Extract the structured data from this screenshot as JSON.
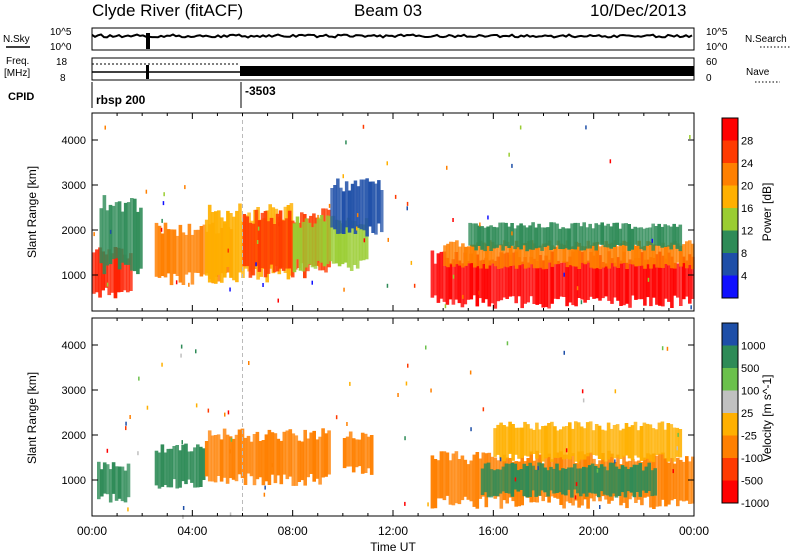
{
  "header": {
    "station": "Clyde River (fitACF)",
    "beam": "Beam 03",
    "date": "10/Dec/2013"
  },
  "summary": {
    "nsky_label": "N.Sky",
    "nsearch_label": "N.Search",
    "nsky_top": "10^5",
    "nsky_bottom": "10^0",
    "nsearch_top": "10^5",
    "nsearch_bottom": "10^0",
    "freq_label_1": "Freq.",
    "freq_label_2": "[MHz]",
    "freq_top": "18",
    "freq_bottom": "8",
    "nave_label": "Nave",
    "nave_top": "60",
    "nave_bottom": "0",
    "cpid_label": "CPID",
    "cpid_values": [
      {
        "name": "rbsp 200",
        "start_hour": 0
      },
      {
        "name": "-3503",
        "start_hour": 6
      }
    ]
  },
  "axes": {
    "ylabel": "Slant Range [km]",
    "xlabel": "Time UT",
    "y_ticks": [
      "4000",
      "3000",
      "2000",
      "1000"
    ],
    "y_tick_values": [
      4000,
      3000,
      2000,
      1000
    ],
    "ylim": [
      200,
      4600
    ],
    "x_ticks": [
      "00:00",
      "04:00",
      "08:00",
      "12:00",
      "16:00",
      "20:00",
      "00:00"
    ],
    "x_tick_hours": [
      0,
      4,
      8,
      12,
      16,
      20,
      24
    ],
    "xlim": [
      0,
      24
    ]
  },
  "chart_data": [
    {
      "type": "heatmap",
      "title": "",
      "xlabel": "Time UT",
      "ylabel": "Slant Range [km]",
      "colorbar_label": "Power [dB]",
      "colorbar_ticks": [
        "28",
        "24",
        "20",
        "16",
        "12",
        "8",
        "4"
      ],
      "colorbar_colors": [
        "#ff0000",
        "#ff3a00",
        "#ff8000",
        "#ffb000",
        "#9acd32",
        "#2e8b57",
        "#1e4fa8",
        "#1010ff"
      ],
      "bands": [
        {
          "t0": 0.0,
          "t1": 1.6,
          "r0": 600,
          "r1": 1500,
          "level": "#ff2000"
        },
        {
          "t0": 0.3,
          "t1": 2.0,
          "r0": 1200,
          "r1": 2600,
          "level": "#2e8b57"
        },
        {
          "t0": 2.5,
          "t1": 5.6,
          "r0": 900,
          "r1": 2000,
          "level": "#ff8000"
        },
        {
          "t0": 4.5,
          "t1": 8.0,
          "r0": 1000,
          "r1": 2400,
          "level": "#ffb000"
        },
        {
          "t0": 6.0,
          "t1": 9.5,
          "r0": 1100,
          "r1": 2300,
          "level": "#ff3a00"
        },
        {
          "t0": 8.0,
          "t1": 11.0,
          "r0": 1200,
          "r1": 2200,
          "level": "#9acd32"
        },
        {
          "t0": 9.5,
          "t1": 11.6,
          "r0": 2000,
          "r1": 3000,
          "level": "#1e4fa8"
        },
        {
          "t0": 13.5,
          "t1": 24.0,
          "r0": 400,
          "r1": 1400,
          "level": "#ff0000"
        },
        {
          "t0": 14.0,
          "t1": 24.0,
          "r0": 1200,
          "r1": 1700,
          "level": "#ff8000"
        },
        {
          "t0": 15.0,
          "t1": 23.5,
          "r0": 1600,
          "r1": 2100,
          "level": "#2e8b57"
        }
      ]
    },
    {
      "type": "heatmap",
      "title": "",
      "xlabel": "Time UT",
      "ylabel": "Slant Range [km]",
      "colorbar_label": "Velocity [m s^-1]",
      "colorbar_ticks": [
        "1000",
        "500",
        "100",
        "25",
        "-25",
        "-100",
        "-500",
        "-1000"
      ],
      "colorbar_colors": [
        "#1e4fa8",
        "#2e8b57",
        "#6bc04b",
        "#c0c0c0",
        "#ffb000",
        "#ff8000",
        "#ff3a00",
        "#ff0000"
      ],
      "bands": [
        {
          "t0": 0.2,
          "t1": 1.5,
          "r0": 600,
          "r1": 1300,
          "level": "#2e8b57"
        },
        {
          "t0": 2.5,
          "t1": 4.5,
          "r0": 900,
          "r1": 1700,
          "level": "#2e8b57"
        },
        {
          "t0": 4.5,
          "t1": 9.5,
          "r0": 1000,
          "r1": 2000,
          "level": "#ff8000"
        },
        {
          "t0": 10.0,
          "t1": 11.2,
          "r0": 1200,
          "r1": 2000,
          "level": "#ff8000"
        },
        {
          "t0": 13.5,
          "t1": 24.0,
          "r0": 500,
          "r1": 1500,
          "level": "#ff8000"
        },
        {
          "t0": 15.5,
          "t1": 22.5,
          "r0": 700,
          "r1": 1300,
          "level": "#2e8b57"
        },
        {
          "t0": 16.0,
          "t1": 23.5,
          "r0": 1500,
          "r1": 2200,
          "level": "#ffb000"
        }
      ]
    }
  ]
}
